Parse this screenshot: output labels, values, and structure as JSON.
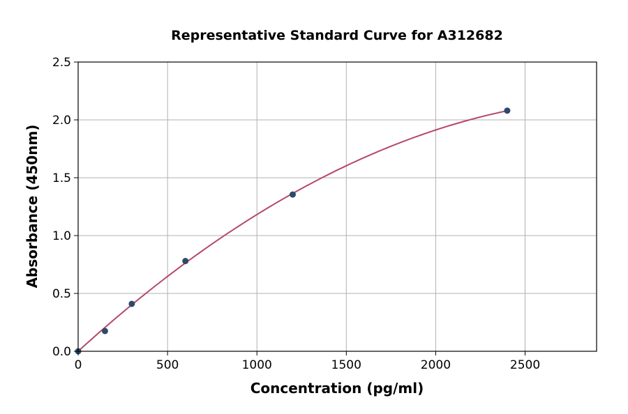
{
  "chart_data": {
    "type": "scatter",
    "title": "Representative Standard Curve for A312682",
    "xlabel": "Concentration (pg/ml)",
    "ylabel": "Absorbance (450nm)",
    "xlim": [
      0,
      2900
    ],
    "ylim": [
      0,
      2.5
    ],
    "xticks": [
      0,
      500,
      1000,
      1500,
      2000,
      2500
    ],
    "yticks": [
      0.0,
      0.5,
      1.0,
      1.5,
      2.0,
      2.5
    ],
    "xtick_labels": [
      "0",
      "500",
      "1000",
      "1500",
      "2000",
      "2500"
    ],
    "ytick_labels": [
      "0.0",
      "0.5",
      "1.0",
      "1.5",
      "2.0",
      "2.5"
    ],
    "grid": true,
    "points": {
      "x": [
        0,
        150,
        300,
        600,
        1200,
        2400
      ],
      "y": [
        0.0,
        0.175,
        0.41,
        0.78,
        1.355,
        2.08
      ]
    },
    "fit_curve": true,
    "colors": {
      "points": "#2e4a6b",
      "curve": "#b5476a"
    }
  }
}
